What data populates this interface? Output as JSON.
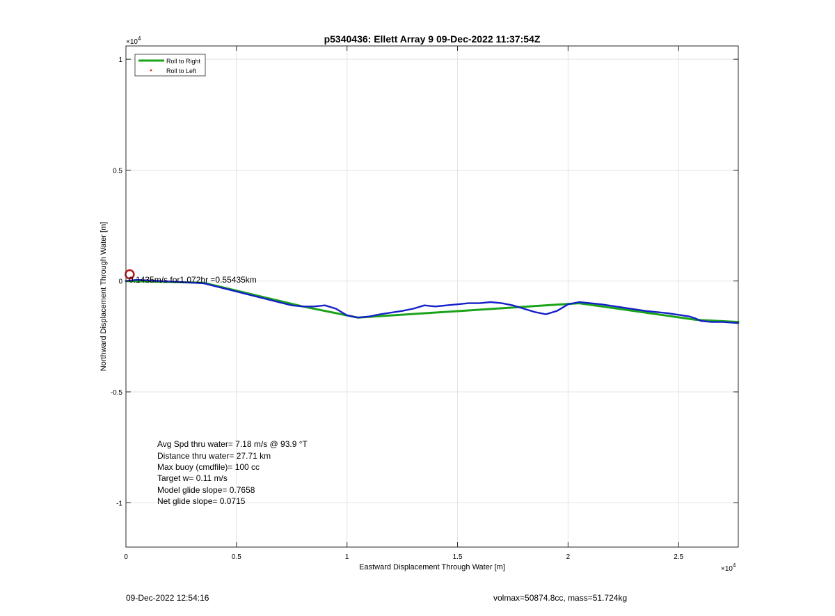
{
  "chart_data": {
    "type": "line",
    "title": "p5340436: Ellett Array 9 09-Dec-2022 11:37:54Z",
    "xlabel": "Eastward Displacement Through Water [m]",
    "ylabel": "Northward Displacement Through Water [m]",
    "xlim": [
      0,
      27700
    ],
    "ylim": [
      -12000,
      10600
    ],
    "x_ticks": [
      0,
      5000,
      10000,
      15000,
      20000,
      25000
    ],
    "x_tick_labels": [
      "0",
      "0.5",
      "1",
      "1.5",
      "2",
      "2.5"
    ],
    "y_ticks": [
      -10000,
      -5000,
      0,
      5000,
      10000
    ],
    "y_tick_labels": [
      "-1",
      "-0.5",
      "0",
      "0.5",
      "1"
    ],
    "x_exponent_label": "×10",
    "y_exponent_label": "×10",
    "exponent_power": "4",
    "grid": true,
    "legend": {
      "placement": "top-left",
      "entries": [
        {
          "label": "Roll to Right",
          "color": "#1aa31a",
          "marker": "line"
        },
        {
          "label": "Roll to Left",
          "color": "#e0201b",
          "marker": "dot"
        }
      ]
    },
    "series": [
      {
        "color": "#1aa31a",
        "x": [
          0,
          3500,
          8000,
          10500,
          20500,
          25800,
          27700
        ],
        "y": [
          0,
          -80,
          -1150,
          -1650,
          -1000,
          -1750,
          -1850
        ]
      },
      {
        "color": "#1520c8",
        "x": [
          0,
          500,
          1500,
          2500,
          3500,
          4500,
          5500,
          6500,
          7500,
          8000,
          8500,
          9000,
          9500,
          10000,
          10500,
          11000,
          11500,
          12500,
          13000,
          13500,
          14000,
          14500,
          15000,
          15500,
          16000,
          16500,
          17000,
          17500,
          18000,
          18500,
          19000,
          19500,
          20000,
          20500,
          21000,
          21500,
          22500,
          23500,
          24500,
          25500,
          25800,
          26000,
          26500,
          27000,
          27700
        ],
        "y": [
          0,
          50,
          0,
          -50,
          -100,
          -350,
          -600,
          -850,
          -1100,
          -1150,
          -1150,
          -1100,
          -1250,
          -1550,
          -1650,
          -1600,
          -1500,
          -1350,
          -1250,
          -1100,
          -1150,
          -1100,
          -1050,
          -1000,
          -1000,
          -950,
          -1000,
          -1100,
          -1250,
          -1400,
          -1500,
          -1350,
          -1050,
          -950,
          -1000,
          -1050,
          -1200,
          -1350,
          -1450,
          -1600,
          -1700,
          -1800,
          -1850,
          -1850,
          -1900
        ]
      }
    ],
    "markers": [
      {
        "type": "circle",
        "x": 170,
        "y": 300,
        "color": "#c0141d"
      }
    ],
    "annotations": [
      {
        "text": "0.1435m/s for1.072hr =0.55435km",
        "x": 0,
        "y": 0
      }
    ],
    "stats": [
      "Avg Spd thru water=  7.18 m/s @  93.9 °T",
      "Distance thru water= 27.71 km",
      "Max buoy (cmdfile)= 100 cc",
      "Target w= 0.11 m/s",
      "Model glide slope= 0.7658",
      "Net glide slope= 0.0715"
    ]
  },
  "footer": {
    "left": "09-Dec-2022 12:54:16",
    "right": "volmax=50874.8cc, mass=51.724kg"
  }
}
